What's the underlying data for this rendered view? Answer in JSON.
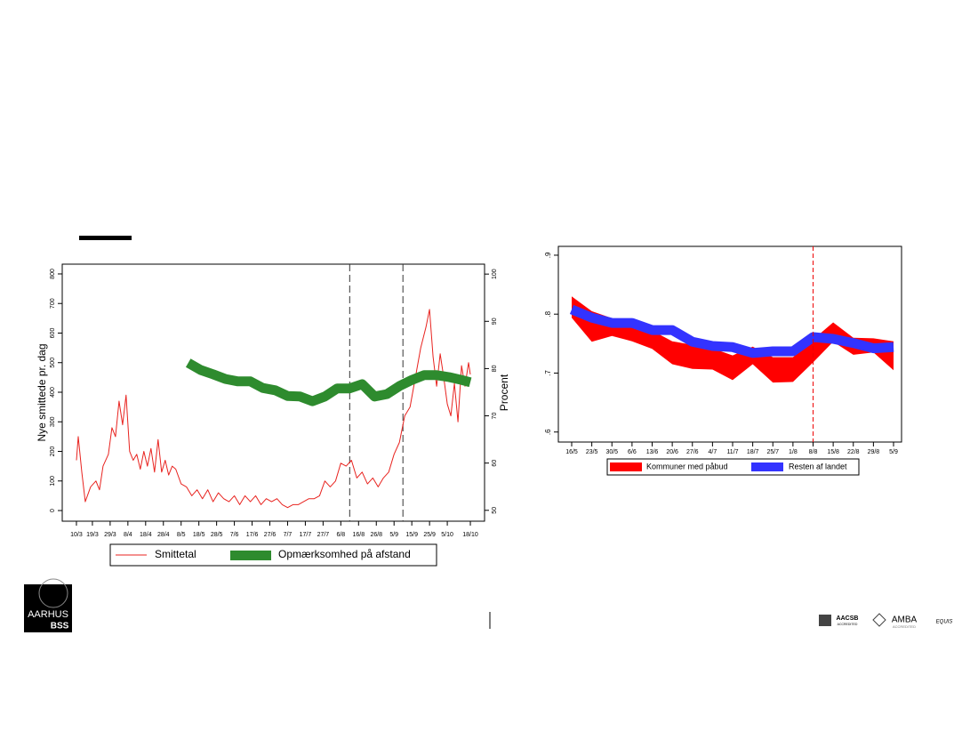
{
  "chart_data": [
    {
      "type": "line",
      "ylabel": "Nye smittede pr. dag",
      "y2label": "Procent",
      "xlim": [
        "2/3",
        "26/10"
      ],
      "xticks": [
        "10/3",
        "19/3",
        "29/3",
        "8/4",
        "18/4",
        "28/4",
        "8/5",
        "18/5",
        "28/5",
        "7/6",
        "17/6",
        "27/6",
        "7/7",
        "17/7",
        "27/7",
        "6/8",
        "16/8",
        "26/8",
        "5/9",
        "15/9",
        "25/9",
        "5/10",
        "18/10"
      ],
      "ylim": [
        -36,
        833
      ],
      "yticks": [
        0,
        100,
        200,
        300,
        400,
        500,
        600,
        700,
        800
      ],
      "y2lim": [
        47.7,
        102.1
      ],
      "y2ticks": [
        50,
        60,
        70,
        80,
        90,
        100
      ],
      "vlines": [
        "11/8",
        "10/9"
      ],
      "series": [
        {
          "name": "Smittetal",
          "color": "#e8231f",
          "x": [
            "10/3",
            "11/3",
            "13/3",
            "15/3",
            "18/3",
            "21/3",
            "23/3",
            "25/3",
            "28/3",
            "30/3",
            "1/4",
            "3/4",
            "5/4",
            "7/4",
            "9/4",
            "11/4",
            "13/4",
            "15/4",
            "17/4",
            "19/4",
            "21/4",
            "23/4",
            "25/4",
            "27/4",
            "29/4",
            "1/5",
            "3/5",
            "5/5",
            "8/5",
            "11/5",
            "14/5",
            "17/5",
            "20/5",
            "23/5",
            "26/5",
            "29/5",
            "1/6",
            "4/6",
            "7/6",
            "10/6",
            "13/6",
            "16/6",
            "19/6",
            "22/6",
            "25/6",
            "28/6",
            "1/7",
            "4/7",
            "7/7",
            "10/7",
            "13/7",
            "16/7",
            "19/7",
            "22/7",
            "25/7",
            "28/7",
            "31/7",
            "3/8",
            "6/8",
            "9/8",
            "12/8",
            "15/8",
            "18/8",
            "21/8",
            "24/8",
            "27/8",
            "30/8",
            "2/9",
            "5/9",
            "8/9",
            "11/9",
            "14/9",
            "17/9",
            "20/9",
            "23/9",
            "25/9",
            "27/9",
            "29/9",
            "1/10",
            "3/10",
            "5/10",
            "7/10",
            "9/10",
            "11/10",
            "13/10",
            "15/10",
            "17/10",
            "18/10"
          ],
          "values": [
            170,
            250,
            130,
            30,
            80,
            100,
            70,
            150,
            190,
            280,
            250,
            370,
            290,
            390,
            200,
            170,
            190,
            140,
            200,
            150,
            210,
            130,
            240,
            130,
            170,
            120,
            150,
            140,
            90,
            80,
            50,
            70,
            40,
            70,
            30,
            60,
            40,
            30,
            50,
            20,
            50,
            30,
            50,
            20,
            40,
            30,
            40,
            20,
            10,
            20,
            20,
            30,
            40,
            40,
            50,
            100,
            80,
            100,
            160,
            150,
            170,
            110,
            130,
            90,
            110,
            80,
            110,
            130,
            190,
            230,
            320,
            350,
            450,
            550,
            620,
            680,
            520,
            420,
            530,
            450,
            360,
            320,
            430,
            300,
            490,
            420,
            500,
            460
          ]
        },
        {
          "name": "Opmærksomhed på afstand",
          "color": "#2e8b2e",
          "axis": "y2",
          "x": [
            "12/5",
            "19/5",
            "26/5",
            "2/6",
            "9/6",
            "16/6",
            "23/6",
            "30/6",
            "7/7",
            "14/7",
            "21/7",
            "28/7",
            "4/8",
            "11/8",
            "18/8",
            "25/8",
            "1/9",
            "8/9",
            "15/9",
            "22/9",
            "29/9",
            "6/10",
            "13/10",
            "18/10"
          ],
          "values": [
            81.2,
            79.7,
            78.8,
            77.8,
            77.3,
            77.3,
            75.9,
            75.4,
            74.2,
            74.1,
            73.1,
            74.1,
            75.8,
            75.8,
            76.7,
            74.1,
            74.6,
            76.3,
            77.6,
            78.6,
            78.6,
            78.2,
            77.6,
            77.1
          ]
        }
      ]
    },
    {
      "type": "band-line",
      "categories": [
        "16/5",
        "23/5",
        "30/5",
        "6/6",
        "13/6",
        "20/6",
        "27/6",
        "4/7",
        "11/7",
        "18/7",
        "25/7",
        "1/8",
        "8/8",
        "15/8",
        "22/8",
        "29/8",
        "5/9"
      ],
      "ylim": [
        0.583,
        0.915
      ],
      "yticks": [
        {
          "value": 0.6,
          "label": ".6"
        },
        {
          "value": 0.7,
          "label": ".7"
        },
        {
          "value": 0.8,
          "label": ".8"
        },
        {
          "value": 0.9,
          "label": ".9"
        }
      ],
      "vlines": [
        "8/8"
      ],
      "series": [
        {
          "name": "Kommuner med påbud",
          "color": "#ff0000",
          "high": [
            0.83,
            0.805,
            0.793,
            0.781,
            0.772,
            0.754,
            0.748,
            0.742,
            0.73,
            0.745,
            0.727,
            0.727,
            0.757,
            0.786,
            0.76,
            0.759,
            0.754
          ],
          "low": [
            0.794,
            0.753,
            0.763,
            0.754,
            0.741,
            0.715,
            0.707,
            0.706,
            0.688,
            0.715,
            0.684,
            0.685,
            0.718,
            0.753,
            0.731,
            0.735,
            0.705
          ]
        },
        {
          "name": "Resten af landet",
          "color": "#3333ff",
          "values": [
            0.808,
            0.794,
            0.785,
            0.785,
            0.773,
            0.773,
            0.753,
            0.746,
            0.744,
            0.734,
            0.737,
            0.737,
            0.761,
            0.758,
            0.751,
            0.742,
            0.744
          ]
        }
      ]
    }
  ],
  "footer": {
    "logo": [
      "AARHUS",
      "BSS"
    ],
    "accreditations": [
      "AACSB",
      "ACCREDITED",
      "AMBA",
      "ACCREDITED",
      "EQUIS"
    ]
  }
}
